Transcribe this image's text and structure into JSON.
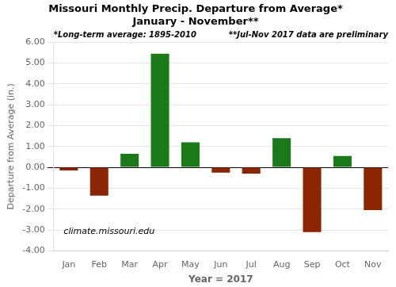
{
  "chart_data": {
    "type": "bar",
    "title": "Missouri Monthly Precip. Departure from Average*",
    "subtitle": "January - November**",
    "x_label": "Year = 2017",
    "y_label": "Departure from Average (in.)",
    "categories": [
      "Jan",
      "Feb",
      "Mar",
      "Apr",
      "May",
      "Jun",
      "Jul",
      "Aug",
      "Sep",
      "Oct",
      "Nov"
    ],
    "values": [
      -0.15,
      -1.35,
      0.65,
      5.45,
      1.2,
      -0.25,
      -0.3,
      1.4,
      -3.1,
      0.55,
      -2.05
    ],
    "colors": [
      "#8b2500",
      "#8b2500",
      "#1a7a1a",
      "#1a7a1a",
      "#1a7a1a",
      "#8b2500",
      "#8b2500",
      "#1a7a1a",
      "#8b2500",
      "#1a7a1a",
      "#8b2500"
    ],
    "ylim": [
      -4.0,
      6.0
    ],
    "yticks": [
      {
        "value": -4.0,
        "label": "-4.00"
      },
      {
        "value": -3.0,
        "label": "-3.00"
      },
      {
        "value": -2.0,
        "label": "-2.00"
      },
      {
        "value": -1.0,
        "label": "-1.00"
      },
      {
        "value": 0.0,
        "label": "0.00"
      },
      {
        "value": 1.0,
        "label": "1.00"
      },
      {
        "value": 2.0,
        "label": "2.00"
      },
      {
        "value": 3.0,
        "label": "3.00"
      },
      {
        "value": 4.0,
        "label": "4.00"
      },
      {
        "value": 5.0,
        "label": "5.00"
      },
      {
        "value": 6.0,
        "label": "6.00"
      }
    ],
    "grid": true,
    "annotations": [
      "*Long-term average: 1895-2010",
      "**Jul-Nov 2017 data are preliminary",
      "climate.missouri.edu"
    ]
  }
}
